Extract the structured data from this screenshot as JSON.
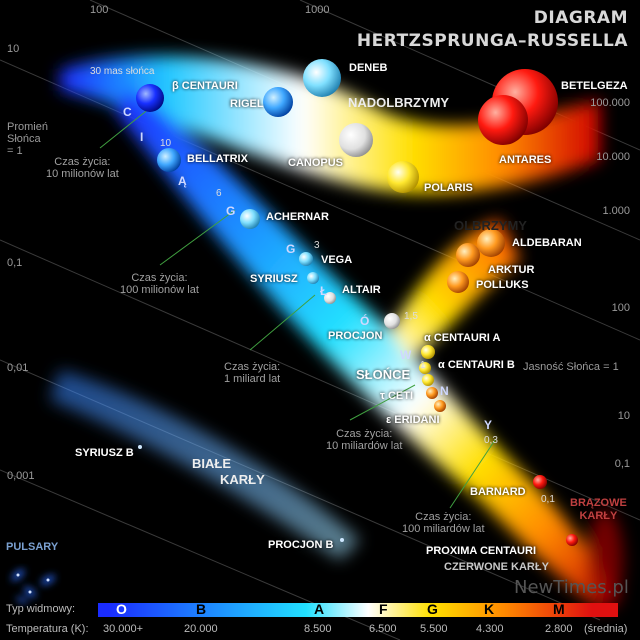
{
  "title": {
    "line1": "DIAGRAM",
    "line2": "HERTZSPRUNGA–RUSSELLA"
  },
  "radius_axis": {
    "top": [
      "100",
      "1000"
    ],
    "left": [
      "10",
      "0,1",
      "0,01",
      "0,001"
    ],
    "label": "Promień\nSłońca\n= 1"
  },
  "luminosity_axis": {
    "right": [
      "100.000",
      "10.000",
      "1.000",
      "100",
      "10",
      "0,1"
    ],
    "sun_label": "Jasność Słońca = 1"
  },
  "main_sequence_label": [
    "C",
    "I",
    "Ą",
    "G",
    "G",
    "Ł",
    "Ó",
    "W",
    "N",
    "Y"
  ],
  "masses": {
    "m30": "30 mas słońca",
    "m10": "10",
    "m6": "6",
    "m3": "3",
    "m15": "1,5",
    "m1": "1",
    "m03": "0,3",
    "m01": "0,1"
  },
  "stars": {
    "beta_centauri": "β CENTAURI",
    "bellatrix": "BELLATRIX",
    "achernar": "ACHERNAR",
    "vega": "VEGA",
    "syriusz": "SYRIUSZ",
    "altair": "ALTAIR",
    "procjon": "PROCJON",
    "alpha_cen_a": "α CENTAURI A",
    "alpha_cen_b": "α CENTAURI B",
    "slonce": "SŁOŃCE",
    "tau_ceti": "τ CETI",
    "eps_eridani": "ε ERIDANI",
    "barnard": "BARNARD",
    "proxima": "PROXIMA CENTAURI",
    "deneb": "DENEB",
    "rigel": "RIGEL",
    "canopus": "CANOPUS",
    "polaris": "POLARIS",
    "betelgeza": "BETELGEZA",
    "antares": "ANTARES",
    "aldebaran": "ALDEBARAN",
    "arktur": "ARKTUR",
    "polluks": "POLLUKS",
    "syriusz_b": "SYRIUSZ B",
    "procjon_b": "PROCJON B"
  },
  "regions": {
    "supergiants": "NADOLBRZYMY",
    "giants": "OLBRZYMY",
    "white_dwarfs_1": "BIAŁE",
    "white_dwarfs_2": "KARŁY",
    "brown_dwarfs": "BRĄZOWE\nKARŁY",
    "red_dwarfs": "CZERWONE KARŁY",
    "pulsars": "PULSARY"
  },
  "lifetimes": {
    "l1": "Czas życia:\n10 milionów lat",
    "l2": "Czas życia:\n100 milionów lat",
    "l3": "Czas życia:\n1 miliard lat",
    "l4": "Czas życia:\n10 miliardów lat",
    "l5": "Czas życia:\n100 miliardów lat"
  },
  "spectral_bar": {
    "type_label": "Typ widmowy:",
    "classes": [
      "O",
      "B",
      "A",
      "F",
      "G",
      "K",
      "M"
    ],
    "temp_label": "Temperatura (K):",
    "temps": [
      "30.000+",
      "20.000",
      "8.500",
      "6.500",
      "5.500",
      "4.300",
      "2.800"
    ],
    "temp_note": "(średnia)",
    "colors": [
      "#1a2cff",
      "#1e8cff",
      "#22e0ff",
      "#ffffff",
      "#ffe000",
      "#ff8a00",
      "#e01010"
    ]
  },
  "watermark": "NewTimes.pl"
}
